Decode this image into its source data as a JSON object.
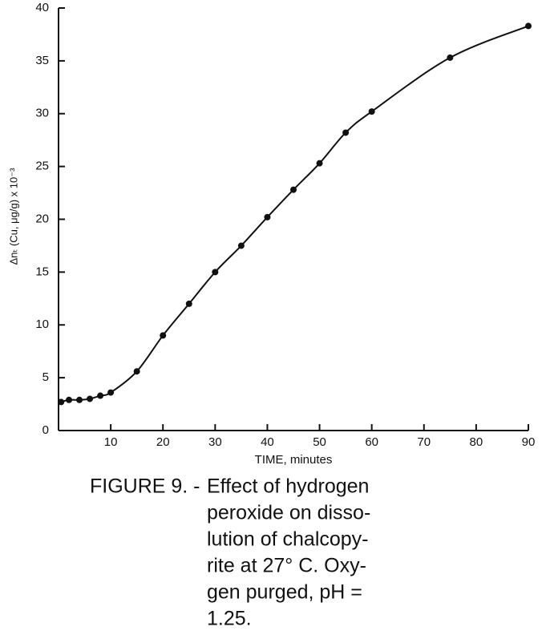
{
  "chart_data": {
    "type": "scatter",
    "x_label": "TIME, minutes",
    "y_label": "Δnₜ (Cu, μg/g) x 10⁻³",
    "x": [
      0.5,
      2,
      4,
      6,
      8,
      10,
      15,
      20,
      25,
      30,
      35,
      40,
      45,
      50,
      55,
      60,
      75,
      90
    ],
    "series": [
      {
        "color": "#111111",
        "values": [
          2.7,
          2.9,
          2.9,
          3.0,
          3.3,
          3.6,
          5.6,
          9.0,
          12.0,
          15.0,
          17.5,
          20.2,
          22.8,
          25.3,
          28.2,
          30.2,
          35.3,
          38.3
        ]
      }
    ],
    "xlim": [
      0,
      90
    ],
    "xticks": [
      10,
      20,
      30,
      40,
      50,
      60,
      70,
      80,
      90
    ],
    "ylim": [
      0,
      40
    ],
    "yticks": [
      0,
      5,
      10,
      15,
      20,
      25,
      30,
      35,
      40
    ],
    "fit_curve": true,
    "caption_label": "FIGURE 9. -",
    "caption_lines": [
      "Effect of hydrogen",
      "peroxide on disso-",
      "lution of chalcopy-",
      "rite at 27° C. Oxy-",
      "gen purged,  pH =",
      "1.25."
    ]
  }
}
